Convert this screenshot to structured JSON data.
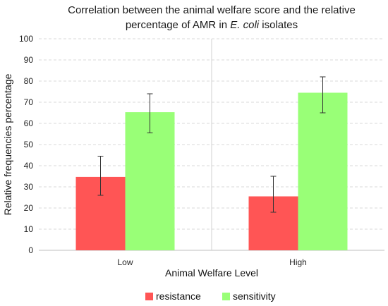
{
  "chart_data": {
    "type": "bar",
    "title_line1": "Correlation between the animal welfare score and the relative",
    "title_line2_prefix": "percentage of AMR in ",
    "title_line2_italic": "E. coli",
    "title_line2_suffix": " isolates",
    "xlabel": "Animal Welfare Level",
    "ylabel": "Relative frequencies percentage",
    "categories": [
      "Low",
      "High"
    ],
    "ylim": [
      0,
      100
    ],
    "yticks": [
      0,
      10,
      20,
      30,
      40,
      50,
      60,
      70,
      80,
      90,
      100
    ],
    "grid": "horizontal dashed",
    "legend_position": "bottom",
    "series": [
      {
        "name": "resistance",
        "color": "#ff5555",
        "values": [
          34.7,
          25.5
        ],
        "error_low": [
          26,
          18
        ],
        "error_high": [
          44.5,
          35
        ]
      },
      {
        "name": "sensitivity",
        "color": "#99ff77",
        "values": [
          65.3,
          74.5
        ],
        "error_low": [
          55.5,
          65
        ],
        "error_high": [
          74,
          82
        ]
      }
    ]
  }
}
